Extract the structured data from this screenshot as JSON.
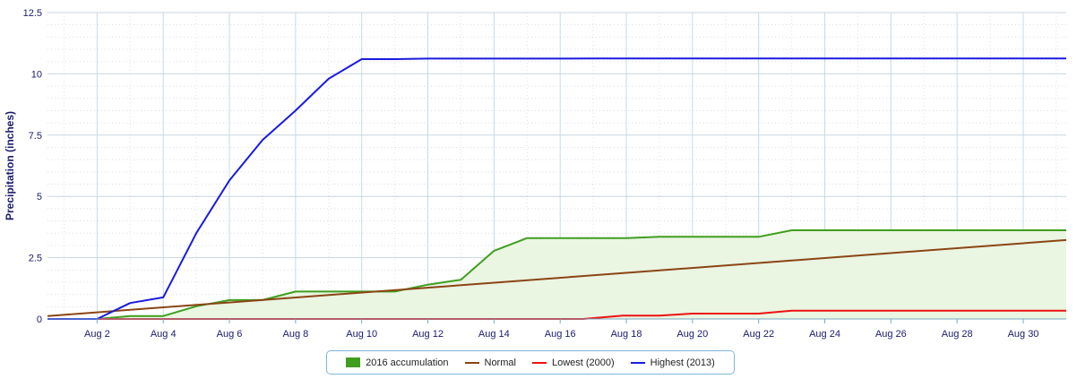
{
  "chart_data": {
    "type": "line",
    "title": "",
    "ylabel": "Precipitation (inches)",
    "xlabel": "",
    "xlim": [
      0.5,
      31.3
    ],
    "ylim": [
      0,
      12.5
    ],
    "y_ticks": [
      0,
      2.5,
      5,
      7.5,
      10,
      12.5
    ],
    "y_tick_labels": [
      "0",
      "2.5",
      "5",
      "7.5",
      "10",
      "12.5"
    ],
    "x_ticks": [
      2,
      4,
      6,
      8,
      10,
      12,
      14,
      16,
      18,
      20,
      22,
      24,
      26,
      28,
      30
    ],
    "x_tick_labels": [
      "Aug 2",
      "Aug 4",
      "Aug 6",
      "Aug 8",
      "Aug 10",
      "Aug 12",
      "Aug 14",
      "Aug 16",
      "Aug 18",
      "Aug 20",
      "Aug 22",
      "Aug 24",
      "Aug 26",
      "Aug 28",
      "Aug 30"
    ],
    "grid": true,
    "legend_position": "bottom-center",
    "series": [
      {
        "name": "2016 accumulation",
        "kind": "area",
        "color": "#3f9e1f",
        "fill": "#eaf5e2",
        "x": [
          2,
          3,
          4,
          5,
          6,
          7,
          8,
          9,
          10,
          11,
          12,
          13,
          14,
          15,
          16,
          17,
          18,
          19,
          20,
          21,
          22,
          23,
          24,
          25,
          26,
          27,
          28,
          29,
          30,
          31,
          31.3
        ],
        "values": [
          0,
          0.12,
          0.12,
          0.52,
          0.77,
          0.77,
          1.12,
          1.12,
          1.12,
          1.12,
          1.4,
          1.6,
          2.78,
          3.3,
          3.3,
          3.3,
          3.3,
          3.35,
          3.35,
          3.35,
          3.35,
          3.62,
          3.62,
          3.62,
          3.62,
          3.62,
          3.62,
          3.62,
          3.62,
          3.62,
          3.62
        ]
      },
      {
        "name": "Normal",
        "kind": "line",
        "color": "#8b4513",
        "x": [
          0.5,
          31.3
        ],
        "values": [
          0.12,
          3.22
        ]
      },
      {
        "name": "Lowest (2000)",
        "kind": "line",
        "color": "#ee1111",
        "x": [
          0.5,
          16.7,
          17.9,
          19,
          20,
          21,
          22,
          23,
          24,
          25,
          26,
          27,
          28,
          29,
          30,
          31,
          31.3
        ],
        "values": [
          0,
          0,
          0.14,
          0.14,
          0.22,
          0.22,
          0.22,
          0.34,
          0.34,
          0.34,
          0.34,
          0.34,
          0.34,
          0.34,
          0.34,
          0.34,
          0.34
        ]
      },
      {
        "name": "Highest (2013)",
        "kind": "line",
        "color": "#1a1adf",
        "x": [
          0.5,
          2,
          3,
          4,
          5,
          6,
          7,
          8,
          9,
          10,
          11,
          12,
          13,
          14,
          15,
          16,
          17,
          18,
          19,
          20,
          21,
          22,
          23,
          24,
          25,
          26,
          27,
          28,
          29,
          30,
          31,
          31.3
        ],
        "values": [
          0,
          0,
          0.65,
          0.88,
          3.5,
          5.65,
          7.3,
          8.5,
          9.8,
          10.6,
          10.6,
          10.62,
          10.62,
          10.62,
          10.62,
          10.62,
          10.63,
          10.63,
          10.63,
          10.63,
          10.63,
          10.63,
          10.63,
          10.63,
          10.63,
          10.63,
          10.63,
          10.63,
          10.63,
          10.63,
          10.63,
          10.63
        ]
      }
    ]
  }
}
